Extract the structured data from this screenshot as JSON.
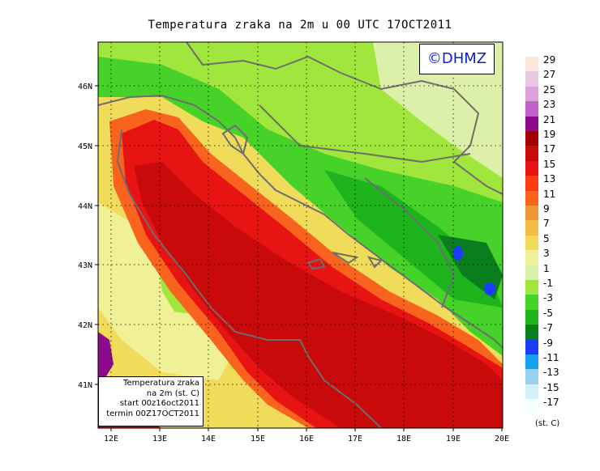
{
  "title": "Temperatura zraka na 2m u 00 UTC 17OCT2011",
  "logo_text": "©DHMZ",
  "units": "(st. C)",
  "info_box": [
    "Temperatura zraka",
    "na 2m (st. C)",
    "start 00z16oct2011",
    "termin 00Z17OCT2011"
  ],
  "x_ticks": [
    "12E",
    "13E",
    "14E",
    "15E",
    "16E",
    "17E",
    "18E",
    "19E",
    "20E"
  ],
  "y_ticks": [
    "41N",
    "42N",
    "43N",
    "44N",
    "45N",
    "46N"
  ],
  "legend": [
    {
      "label": "29",
      "color": "#fbe8d8"
    },
    {
      "label": "27",
      "color": "#e8c8e0"
    },
    {
      "label": "25",
      "color": "#dca0dc"
    },
    {
      "label": "23",
      "color": "#c060c8"
    },
    {
      "label": "21",
      "color": "#8c0a8c"
    },
    {
      "label": "19",
      "color": "#a00000"
    },
    {
      "label": "17",
      "color": "#c80a0a"
    },
    {
      "label": "15",
      "color": "#e81414"
    },
    {
      "label": "13",
      "color": "#fa3c14"
    },
    {
      "label": "11",
      "color": "#f8641e"
    },
    {
      "label": "9",
      "color": "#f09632"
    },
    {
      "label": "7",
      "color": "#f0be46"
    },
    {
      "label": "5",
      "color": "#f0dc5a"
    },
    {
      "label": "3",
      "color": "#f0f096"
    },
    {
      "label": "1",
      "color": "#dcf0aa"
    },
    {
      "label": "-1",
      "color": "#a0e63c"
    },
    {
      "label": "-3",
      "color": "#46d228"
    },
    {
      "label": "-5",
      "color": "#1eb41e"
    },
    {
      "label": "-7",
      "color": "#0a7d1e"
    },
    {
      "label": "-9",
      "color": "#1e3cff"
    },
    {
      "label": "-11",
      "color": "#14a0f0"
    },
    {
      "label": "-13",
      "color": "#96d2f0"
    },
    {
      "label": "-15",
      "color": "#d2f0fa"
    },
    {
      "label": "-17",
      "color": "#f5ffff"
    }
  ]
}
